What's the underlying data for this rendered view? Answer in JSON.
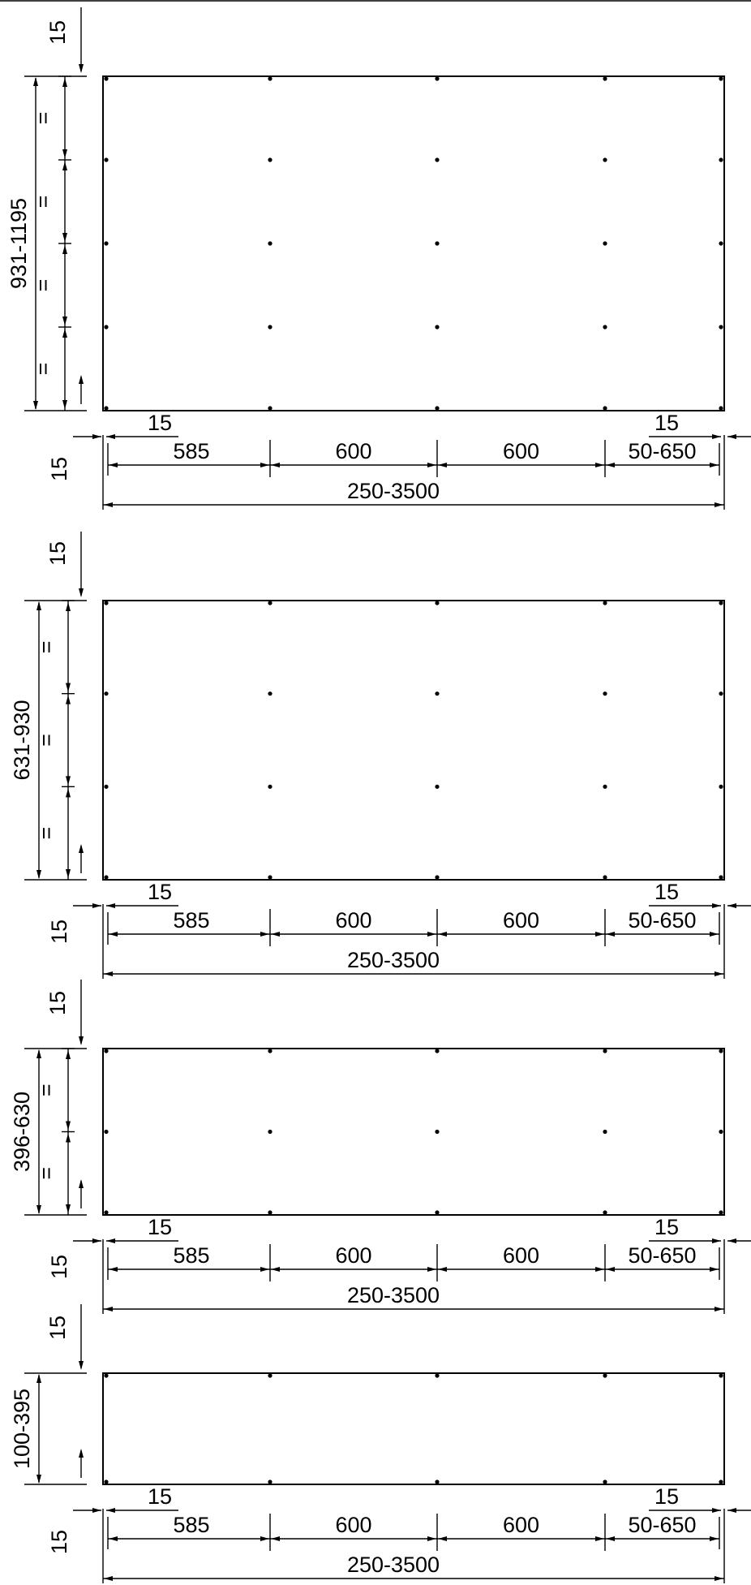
{
  "drawing": {
    "line_color": "#000000",
    "background": "#ffffff",
    "panels": [
      {
        "height_label": "931-1195",
        "rows": 4,
        "division_mark": "=",
        "top_offset": "15",
        "bottom_offset": "15",
        "left_offset": "15",
        "right_offset": "15",
        "spacings": [
          "585",
          "600",
          "600",
          "50-650"
        ],
        "width_label": "250-3500"
      },
      {
        "height_label": "631-930",
        "rows": 3,
        "division_mark": "=",
        "top_offset": "15",
        "bottom_offset": "15",
        "left_offset": "15",
        "right_offset": "15",
        "spacings": [
          "585",
          "600",
          "600",
          "50-650"
        ],
        "width_label": "250-3500"
      },
      {
        "height_label": "396-630",
        "rows": 2,
        "division_mark": "=",
        "top_offset": "15",
        "bottom_offset": "15",
        "left_offset": "15",
        "right_offset": "15",
        "spacings": [
          "585",
          "600",
          "600",
          "50-650"
        ],
        "width_label": "250-3500"
      },
      {
        "height_label": "100-395",
        "rows": 1,
        "division_mark": "",
        "top_offset": "15",
        "bottom_offset": "15",
        "left_offset": "15",
        "right_offset": "15",
        "spacings": [
          "585",
          "600",
          "600",
          "50-650"
        ],
        "width_label": "250-3500"
      }
    ]
  }
}
